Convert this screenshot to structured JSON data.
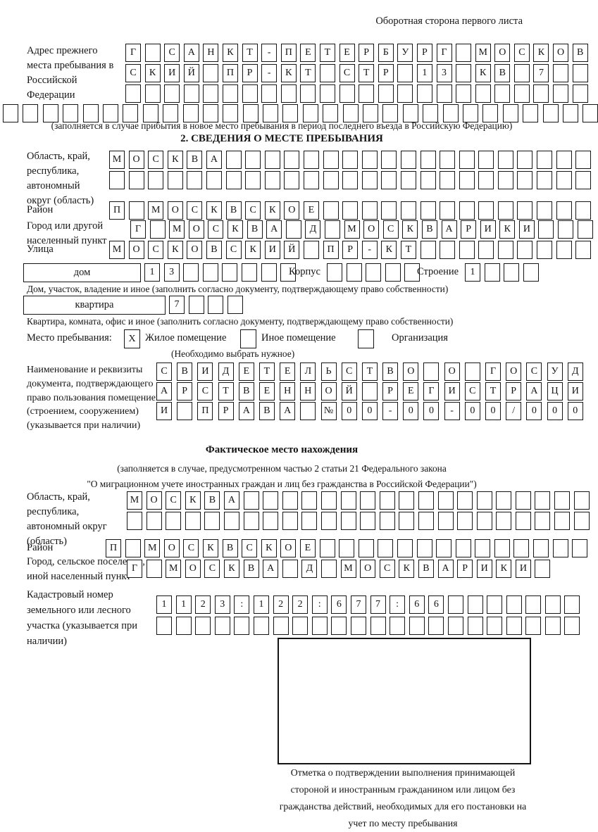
{
  "header": {
    "back_side_note": "Оборотная сторона первого листа"
  },
  "previous_address": {
    "label": "Адрес прежнего места пребывания в Российской Федерации",
    "line1": {
      "chars": "Г САНКТ-ПЕТЕРБУРГ МОСКОВ",
      "len": 24
    },
    "line2": {
      "chars": "СКИЙ ПР-КТ СТР 13 КВ 7",
      "len": 24
    },
    "line3": {
      "chars": "",
      "len": 24
    },
    "line4": {
      "chars": "",
      "len": 30
    },
    "note": "(заполняется в случае прибытия в новое место пребывания в период последнего въезда в Российскую Федерацию)"
  },
  "section2": {
    "title": "2. СВЕДЕНИЯ О МЕСТЕ ПРЕБЫВАНИЯ",
    "region": {
      "label": "Область, край, республика, автономный округ (область)",
      "line1": {
        "chars": "МОСКВА",
        "len": 25
      },
      "line2": {
        "chars": "",
        "len": 25
      }
    },
    "district": {
      "label": "Район",
      "line": {
        "chars": "П МОСКВСКОЕ",
        "len": 25
      }
    },
    "city": {
      "label": "Город или другой населенный пункт",
      "line": {
        "chars": "Г МОСКВА Д МОСКВАРИКИ",
        "len": 24
      }
    },
    "street": {
      "label": "Улица",
      "line": {
        "chars": "МОСКОВСКИЙ ПР-КТ",
        "len": 25
      }
    },
    "house": {
      "label": "дом",
      "line": {
        "chars": "13",
        "len": 8
      }
    },
    "building": {
      "label": "Корпус",
      "line": {
        "chars": "",
        "len": 5
      }
    },
    "structure": {
      "label": "Строение",
      "line": {
        "chars": "1",
        "len": 4
      }
    },
    "house_note": "Дом, участок, владение и иное (заполнить согласно документу, подтверждающему право собственности)",
    "apartment": {
      "label": "квартира",
      "line": {
        "chars": "7",
        "len": 4
      }
    },
    "apartment_note": "Квартира, комната, офис и иное (заполнить согласно документу, подтверждающему право собственности)",
    "stay_place": {
      "label": "Место пребывания:",
      "options": [
        {
          "label": "Жилое помещение",
          "mark": "X"
        },
        {
          "label": "Иное помещение",
          "mark": ""
        },
        {
          "label": "Организация",
          "mark": ""
        }
      ],
      "note": "(Необходимо выбрать нужное)"
    },
    "document": {
      "label": "Наименование и реквизиты документа, подтверждающего право пользования помещением (строением, сооружением) (указывается при наличии)",
      "line1": {
        "chars": "СВИДЕТЕЛЬСТВО О ГОСУД",
        "len": 21
      },
      "line2": {
        "chars": "АРСТВЕННОЙ РЕГИСТРАЦИ",
        "len": 21
      },
      "line3": {
        "chars": "И ПРАВА №00-00-00/000",
        "len": 21
      }
    }
  },
  "actual_location": {
    "title": "Фактическое место нахождения",
    "note_line1": "(заполняется в случае, предусмотренном частью 2 статьи 21 Федерального закона",
    "note_line2": "\"О миграционном учете иностранных граждан и лиц без гражданства в Российской Федерации\")",
    "region": {
      "label": "Область, край, республика, автономный округ (область)",
      "line1": {
        "chars": "МОСКВА",
        "len": 24
      },
      "line2": {
        "chars": "",
        "len": 24
      }
    },
    "district": {
      "label": "Район",
      "line": {
        "chars": "П МОСКВСКОЕ",
        "len": 25
      }
    },
    "city": {
      "label": "Город, сельское поселение, иной населенный пункт",
      "line": {
        "chars": "Г МОСКВА Д МОСКВАРИКИ",
        "len": 22
      }
    },
    "cadastral": {
      "label": "Кадастровый номер земельного или лесного участка (указывается при наличии)",
      "line1": {
        "chars": "1123:122:677:66",
        "len": 22
      },
      "line2": {
        "chars": "",
        "len": 22
      }
    },
    "stamp_note": "Отметка о подтверждении выполнения принимающей стороной и иностранным гражданином или лицом без гражданства действий, необходимых для его постановки на учет по месту пребывания"
  }
}
